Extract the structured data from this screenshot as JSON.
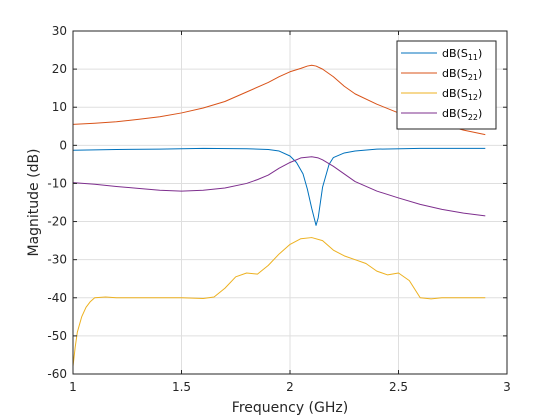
{
  "chart_data": {
    "type": "line",
    "title": "",
    "xlabel": "Frequency (GHz)",
    "ylabel": "Magnitude (dB)",
    "xlim": [
      1,
      3
    ],
    "ylim": [
      -60,
      30
    ],
    "xticks": [
      1,
      1.5,
      2,
      2.5,
      3
    ],
    "xtick_labels": [
      "1",
      "1.5",
      "2",
      "2.5",
      "3"
    ],
    "yticks": [
      -60,
      -50,
      -40,
      -30,
      -20,
      -10,
      0,
      10,
      20,
      30
    ],
    "ytick_labels": [
      "-60",
      "-50",
      "-40",
      "-30",
      "-20",
      "-10",
      "0",
      "10",
      "20",
      "30"
    ],
    "grid": true,
    "legend_position": "top-right",
    "series": [
      {
        "name": "dB(S11)",
        "label_main": "dB(S",
        "label_sub": "11",
        "label_end": ")",
        "color": "#0072BD",
        "x": [
          1.0,
          1.2,
          1.4,
          1.6,
          1.8,
          1.9,
          1.95,
          2.0,
          2.03,
          2.06,
          2.08,
          2.1,
          2.12,
          2.13,
          2.15,
          2.18,
          2.2,
          2.25,
          2.3,
          2.4,
          2.6,
          2.8,
          2.9
        ],
        "y": [
          -1.3,
          -1.1,
          -1.0,
          -0.8,
          -0.9,
          -1.1,
          -1.5,
          -2.8,
          -4.5,
          -7.5,
          -11.5,
          -16.5,
          -21.0,
          -19.0,
          -11.0,
          -5.0,
          -3.2,
          -2.0,
          -1.5,
          -1.0,
          -0.8,
          -0.8,
          -0.8
        ]
      },
      {
        "name": "dB(S21)",
        "label_main": "dB(S",
        "label_sub": "21",
        "label_end": ")",
        "color": "#D95319",
        "x": [
          1.0,
          1.1,
          1.2,
          1.3,
          1.4,
          1.5,
          1.6,
          1.7,
          1.8,
          1.9,
          1.95,
          2.0,
          2.05,
          2.08,
          2.1,
          2.12,
          2.15,
          2.2,
          2.25,
          2.3,
          2.4,
          2.5,
          2.6,
          2.7,
          2.8,
          2.9
        ],
        "y": [
          5.5,
          5.8,
          6.2,
          6.8,
          7.5,
          8.5,
          9.8,
          11.5,
          14.0,
          16.5,
          18.0,
          19.3,
          20.2,
          20.8,
          21.0,
          20.8,
          20.0,
          18.0,
          15.5,
          13.5,
          10.8,
          8.5,
          6.8,
          5.5,
          4.0,
          2.8
        ]
      },
      {
        "name": "dB(S12)",
        "label_main": "dB(S",
        "label_sub": "12",
        "label_end": ")",
        "color": "#EDB120",
        "x": [
          1.0,
          1.01,
          1.02,
          1.04,
          1.06,
          1.08,
          1.1,
          1.15,
          1.2,
          1.3,
          1.4,
          1.5,
          1.6,
          1.65,
          1.7,
          1.75,
          1.8,
          1.85,
          1.9,
          1.95,
          2.0,
          2.05,
          2.1,
          2.15,
          2.2,
          2.25,
          2.3,
          2.35,
          2.4,
          2.45,
          2.5,
          2.55,
          2.6,
          2.65,
          2.7,
          2.8,
          2.9
        ],
        "y": [
          -58.0,
          -53.0,
          -49.0,
          -45.0,
          -42.5,
          -41.0,
          -40.0,
          -39.8,
          -40.0,
          -40.0,
          -40.0,
          -40.0,
          -40.2,
          -39.8,
          -37.5,
          -34.5,
          -33.5,
          -33.8,
          -31.5,
          -28.5,
          -26.0,
          -24.5,
          -24.2,
          -25.0,
          -27.5,
          -29.0,
          -30.0,
          -31.0,
          -33.0,
          -34.0,
          -33.5,
          -35.5,
          -40.0,
          -40.3,
          -40.0,
          -40.0,
          -40.0
        ]
      },
      {
        "name": "dB(S22)",
        "label_main": "dB(S",
        "label_sub": "22",
        "label_end": ")",
        "color": "#7E2F8E",
        "x": [
          1.0,
          1.1,
          1.2,
          1.3,
          1.4,
          1.5,
          1.6,
          1.7,
          1.8,
          1.85,
          1.9,
          1.95,
          2.0,
          2.05,
          2.1,
          2.13,
          2.15,
          2.2,
          2.25,
          2.3,
          2.4,
          2.5,
          2.6,
          2.7,
          2.8,
          2.9
        ],
        "y": [
          -9.8,
          -10.2,
          -10.8,
          -11.3,
          -11.8,
          -12.0,
          -11.8,
          -11.2,
          -10.0,
          -9.0,
          -7.8,
          -6.0,
          -4.5,
          -3.3,
          -3.0,
          -3.3,
          -3.8,
          -5.5,
          -7.5,
          -9.5,
          -12.0,
          -13.8,
          -15.5,
          -16.8,
          -17.8,
          -18.5
        ]
      }
    ]
  }
}
